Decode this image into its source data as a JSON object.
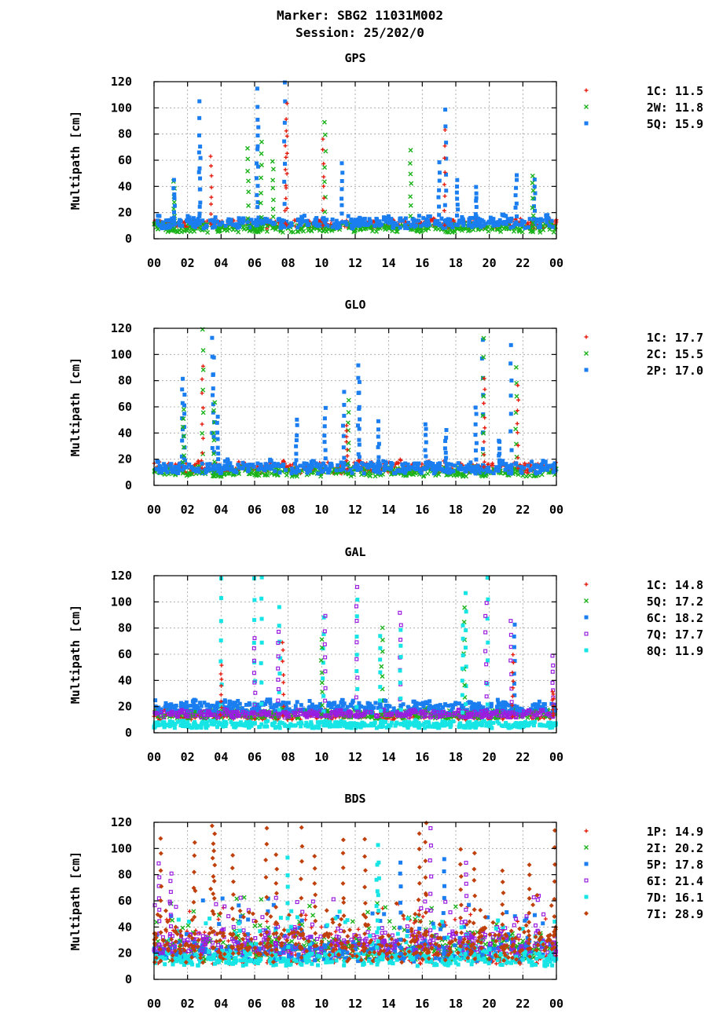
{
  "title_line1": "Marker: SBG2 11031M002",
  "title_line2": "Session: 25/202/0",
  "chart_data": [
    {
      "type": "scatter",
      "title": "GPS",
      "ylabel": "Multipath [cm]",
      "xlabel": "",
      "xlim": [
        0,
        24
      ],
      "ylim": [
        0,
        120
      ],
      "xticks": [
        "00",
        "02",
        "04",
        "06",
        "08",
        "10",
        "12",
        "14",
        "16",
        "18",
        "20",
        "22",
        "00"
      ],
      "yticks": [
        0,
        20,
        40,
        60,
        80,
        100,
        120
      ],
      "grid": true,
      "legend_placement": "right",
      "series": [
        {
          "name": "1C: 11.5",
          "marker": "plus",
          "color": "#e51e10",
          "base": 11,
          "noise": 4,
          "order": 0
        },
        {
          "name": "2W: 11.8",
          "marker": "cross",
          "color": "#1ab31a",
          "base": 8,
          "noise": 4,
          "order": 1
        },
        {
          "name": "5Q: 15.9",
          "marker": "square",
          "color": "#1a7ef0",
          "base": 12,
          "noise": 5,
          "order": 2
        }
      ],
      "spikes": [
        {
          "t": 1.2,
          "s": [
            1,
            2
          ],
          "y": 44
        },
        {
          "t": 2.7,
          "s": [
            2
          ],
          "y": 105
        },
        {
          "t": 2.75,
          "s": [
            2
          ],
          "y": 70
        },
        {
          "t": 3.4,
          "s": [
            0
          ],
          "y": 62
        },
        {
          "t": 5.6,
          "s": [
            1
          ],
          "y": 70
        },
        {
          "t": 6.2,
          "s": [
            2
          ],
          "y": 115
        },
        {
          "t": 6.15,
          "s": [
            2
          ],
          "y": 90
        },
        {
          "t": 6.4,
          "s": [
            1
          ],
          "y": 74
        },
        {
          "t": 7.1,
          "s": [
            1
          ],
          "y": 60
        },
        {
          "t": 7.8,
          "s": [
            2
          ],
          "y": 119
        },
        {
          "t": 7.9,
          "s": [
            0
          ],
          "y": 104
        },
        {
          "t": 7.85,
          "s": [
            0
          ],
          "y": 82
        },
        {
          "t": 10.2,
          "s": [
            1
          ],
          "y": 90
        },
        {
          "t": 10.1,
          "s": [
            0
          ],
          "y": 76
        },
        {
          "t": 11.2,
          "s": [
            2
          ],
          "y": 58
        },
        {
          "t": 15.3,
          "s": [
            1
          ],
          "y": 67
        },
        {
          "t": 17.0,
          "s": [
            2
          ],
          "y": 58
        },
        {
          "t": 17.4,
          "s": [
            2
          ],
          "y": 98
        },
        {
          "t": 17.35,
          "s": [
            0
          ],
          "y": 82
        },
        {
          "t": 18.1,
          "s": [
            2
          ],
          "y": 45
        },
        {
          "t": 19.2,
          "s": [
            2
          ],
          "y": 40
        },
        {
          "t": 21.6,
          "s": [
            2
          ],
          "y": 50
        },
        {
          "t": 22.7,
          "s": [
            2
          ],
          "y": 45
        },
        {
          "t": 22.6,
          "s": [
            1
          ],
          "y": 47
        }
      ]
    },
    {
      "type": "scatter",
      "title": "GLO",
      "ylabel": "Multipath [cm]",
      "xlabel": "",
      "xlim": [
        0,
        24
      ],
      "ylim": [
        0,
        120
      ],
      "xticks": [
        "00",
        "02",
        "04",
        "06",
        "08",
        "10",
        "12",
        "14",
        "16",
        "18",
        "20",
        "22",
        "00"
      ],
      "yticks": [
        0,
        20,
        40,
        60,
        80,
        100,
        120
      ],
      "grid": true,
      "legend_placement": "right",
      "series": [
        {
          "name": "1C: 17.7",
          "marker": "plus",
          "color": "#e51e10",
          "base": 13,
          "noise": 5,
          "order": 0
        },
        {
          "name": "2C: 15.5",
          "marker": "cross",
          "color": "#1ab31a",
          "base": 10,
          "noise": 4,
          "order": 1
        },
        {
          "name": "2P: 17.0",
          "marker": "square",
          "color": "#1a7ef0",
          "base": 13,
          "noise": 5,
          "order": 2
        }
      ],
      "spikes": [
        {
          "t": 1.7,
          "s": [
            2
          ],
          "y": 82
        },
        {
          "t": 1.8,
          "s": [
            2
          ],
          "y": 70
        },
        {
          "t": 1.75,
          "s": [
            1
          ],
          "y": 58
        },
        {
          "t": 2.9,
          "s": [
            1
          ],
          "y": 118
        },
        {
          "t": 2.9,
          "s": [
            0
          ],
          "y": 92
        },
        {
          "t": 3.5,
          "s": [
            2
          ],
          "y": 112
        },
        {
          "t": 3.55,
          "s": [
            2
          ],
          "y": 98
        },
        {
          "t": 3.6,
          "s": [
            1
          ],
          "y": 64
        },
        {
          "t": 3.8,
          "s": [
            2
          ],
          "y": 52
        },
        {
          "t": 8.5,
          "s": [
            2
          ],
          "y": 50
        },
        {
          "t": 10.2,
          "s": [
            2
          ],
          "y": 58
        },
        {
          "t": 11.3,
          "s": [
            2
          ],
          "y": 70
        },
        {
          "t": 11.6,
          "s": [
            1
          ],
          "y": 65
        },
        {
          "t": 11.5,
          "s": [
            0
          ],
          "y": 46
        },
        {
          "t": 12.2,
          "s": [
            2
          ],
          "y": 92
        },
        {
          "t": 12.25,
          "s": [
            2
          ],
          "y": 80
        },
        {
          "t": 13.4,
          "s": [
            2
          ],
          "y": 48
        },
        {
          "t": 16.2,
          "s": [
            2
          ],
          "y": 48
        },
        {
          "t": 17.4,
          "s": [
            2
          ],
          "y": 42
        },
        {
          "t": 19.2,
          "s": [
            2
          ],
          "y": 60
        },
        {
          "t": 19.6,
          "s": [
            2
          ],
          "y": 110
        },
        {
          "t": 19.65,
          "s": [
            1
          ],
          "y": 112
        },
        {
          "t": 19.7,
          "s": [
            0
          ],
          "y": 82
        },
        {
          "t": 20.6,
          "s": [
            2
          ],
          "y": 35
        },
        {
          "t": 21.3,
          "s": [
            2
          ],
          "y": 108
        },
        {
          "t": 21.6,
          "s": [
            1
          ],
          "y": 90
        },
        {
          "t": 21.7,
          "s": [
            0
          ],
          "y": 75
        }
      ]
    },
    {
      "type": "scatter",
      "title": "GAL",
      "ylabel": "Multipath [cm]",
      "xlabel": "",
      "xlim": [
        0,
        24
      ],
      "ylim": [
        0,
        120
      ],
      "xticks": [
        "00",
        "02",
        "04",
        "06",
        "08",
        "10",
        "12",
        "14",
        "16",
        "18",
        "20",
        "22",
        "00"
      ],
      "yticks": [
        0,
        20,
        40,
        60,
        80,
        100,
        120
      ],
      "grid": true,
      "legend_placement": "right",
      "series": [
        {
          "name": "1C: 14.8",
          "marker": "plus",
          "color": "#e51e10",
          "base": 13,
          "noise": 4,
          "order": 0
        },
        {
          "name": "5Q: 17.2",
          "marker": "cross",
          "color": "#1ab31a",
          "base": 14,
          "noise": 4,
          "order": 1
        },
        {
          "name": "6C: 18.2",
          "marker": "square",
          "color": "#1a7ef0",
          "base": 19,
          "noise": 5,
          "order": 2
        },
        {
          "name": "7Q: 17.7",
          "marker": "osquare",
          "color": "#9b1de0",
          "base": 14,
          "noise": 3,
          "order": 3
        },
        {
          "name": "8Q: 11.9",
          "marker": "square",
          "color": "#17e5e5",
          "base": 6,
          "noise": 3,
          "order": 4
        }
      ],
      "spikes": [
        {
          "t": 4.0,
          "s": [
            4
          ],
          "y": 118
        },
        {
          "t": 4.0,
          "s": [
            0
          ],
          "y": 52
        },
        {
          "t": 6.0,
          "s": [
            4
          ],
          "y": 118
        },
        {
          "t": 6.0,
          "s": [
            3
          ],
          "y": 72
        },
        {
          "t": 6.4,
          "s": [
            4
          ],
          "y": 118
        },
        {
          "t": 7.5,
          "s": [
            4
          ],
          "y": 95
        },
        {
          "t": 7.4,
          "s": [
            3
          ],
          "y": 78
        },
        {
          "t": 7.7,
          "s": [
            0
          ],
          "y": 70
        },
        {
          "t": 10.1,
          "s": [
            4
          ],
          "y": 88
        },
        {
          "t": 10.0,
          "s": [
            1
          ],
          "y": 72
        },
        {
          "t": 10.2,
          "s": [
            3
          ],
          "y": 88
        },
        {
          "t": 12.1,
          "s": [
            4
          ],
          "y": 102
        },
        {
          "t": 12.1,
          "s": [
            3
          ],
          "y": 112
        },
        {
          "t": 13.6,
          "s": [
            1
          ],
          "y": 80
        },
        {
          "t": 13.5,
          "s": [
            4
          ],
          "y": 75
        },
        {
          "t": 14.7,
          "s": [
            3
          ],
          "y": 92
        },
        {
          "t": 14.7,
          "s": [
            4
          ],
          "y": 78
        },
        {
          "t": 18.6,
          "s": [
            4
          ],
          "y": 108
        },
        {
          "t": 18.5,
          "s": [
            1
          ],
          "y": 95
        },
        {
          "t": 18.4,
          "s": [
            4
          ],
          "y": 82
        },
        {
          "t": 19.9,
          "s": [
            4
          ],
          "y": 118
        },
        {
          "t": 19.8,
          "s": [
            3
          ],
          "y": 100
        },
        {
          "t": 21.3,
          "s": [
            3
          ],
          "y": 85
        },
        {
          "t": 21.5,
          "s": [
            2
          ],
          "y": 83
        },
        {
          "t": 21.4,
          "s": [
            0
          ],
          "y": 60
        },
        {
          "t": 23.8,
          "s": [
            3
          ],
          "y": 58
        },
        {
          "t": 23.8,
          "s": [
            0
          ],
          "y": 32
        }
      ]
    },
    {
      "type": "scatter",
      "title": "BDS",
      "ylabel": "Multipath [cm]",
      "xlabel": "",
      "xlim": [
        0,
        24
      ],
      "ylim": [
        0,
        120
      ],
      "xticks": [
        "00",
        "02",
        "04",
        "06",
        "08",
        "10",
        "12",
        "14",
        "16",
        "18",
        "20",
        "22",
        "00"
      ],
      "yticks": [
        0,
        20,
        40,
        60,
        80,
        100,
        120
      ],
      "grid": true,
      "legend_placement": "right",
      "series": [
        {
          "name": "1P: 14.9",
          "marker": "plus",
          "color": "#e51e10",
          "base": 18,
          "noise": 8,
          "order": 0
        },
        {
          "name": "2I: 20.2",
          "marker": "cross",
          "color": "#1ab31a",
          "base": 22,
          "noise": 10,
          "order": 1
        },
        {
          "name": "5P: 17.8",
          "marker": "square",
          "color": "#1a7ef0",
          "base": 20,
          "noise": 8,
          "order": 2
        },
        {
          "name": "6I: 21.4",
          "marker": "osquare",
          "color": "#9b1de0",
          "base": 26,
          "noise": 10,
          "order": 3
        },
        {
          "name": "7D: 16.1",
          "marker": "square",
          "color": "#17e5e5",
          "base": 15,
          "noise": 6,
          "order": 4
        },
        {
          "name": "7I: 28.9",
          "marker": "diamond",
          "color": "#c0400c",
          "base": 24,
          "noise": 14,
          "order": 5
        }
      ],
      "spikes": [
        {
          "t": 0.3,
          "s": [
            3
          ],
          "y": 88
        },
        {
          "t": 0.4,
          "s": [
            5
          ],
          "y": 108
        },
        {
          "t": 1.0,
          "s": [
            3
          ],
          "y": 82
        },
        {
          "t": 2.4,
          "s": [
            5
          ],
          "y": 105
        },
        {
          "t": 3.5,
          "s": [
            5
          ],
          "y": 118
        },
        {
          "t": 3.6,
          "s": [
            5
          ],
          "y": 112
        },
        {
          "t": 4.7,
          "s": [
            5
          ],
          "y": 96
        },
        {
          "t": 6.7,
          "s": [
            5
          ],
          "y": 116
        },
        {
          "t": 7.3,
          "s": [
            5
          ],
          "y": 95
        },
        {
          "t": 8.0,
          "s": [
            4
          ],
          "y": 92
        },
        {
          "t": 8.8,
          "s": [
            5
          ],
          "y": 115
        },
        {
          "t": 9.6,
          "s": [
            5
          ],
          "y": 95
        },
        {
          "t": 11.3,
          "s": [
            5
          ],
          "y": 108
        },
        {
          "t": 12.6,
          "s": [
            5
          ],
          "y": 106
        },
        {
          "t": 13.4,
          "s": [
            4
          ],
          "y": 103
        },
        {
          "t": 13.3,
          "s": [
            4
          ],
          "y": 88
        },
        {
          "t": 14.7,
          "s": [
            2
          ],
          "y": 90
        },
        {
          "t": 15.8,
          "s": [
            5
          ],
          "y": 112
        },
        {
          "t": 16.2,
          "s": [
            5
          ],
          "y": 118
        },
        {
          "t": 16.5,
          "s": [
            3
          ],
          "y": 116
        },
        {
          "t": 17.3,
          "s": [
            2
          ],
          "y": 93
        },
        {
          "t": 18.3,
          "s": [
            5
          ],
          "y": 100
        },
        {
          "t": 18.6,
          "s": [
            3
          ],
          "y": 90
        },
        {
          "t": 19.1,
          "s": [
            5
          ],
          "y": 95
        },
        {
          "t": 20.8,
          "s": [
            5
          ],
          "y": 82
        },
        {
          "t": 22.4,
          "s": [
            5
          ],
          "y": 88
        },
        {
          "t": 23.9,
          "s": [
            5
          ],
          "y": 113
        }
      ]
    }
  ]
}
